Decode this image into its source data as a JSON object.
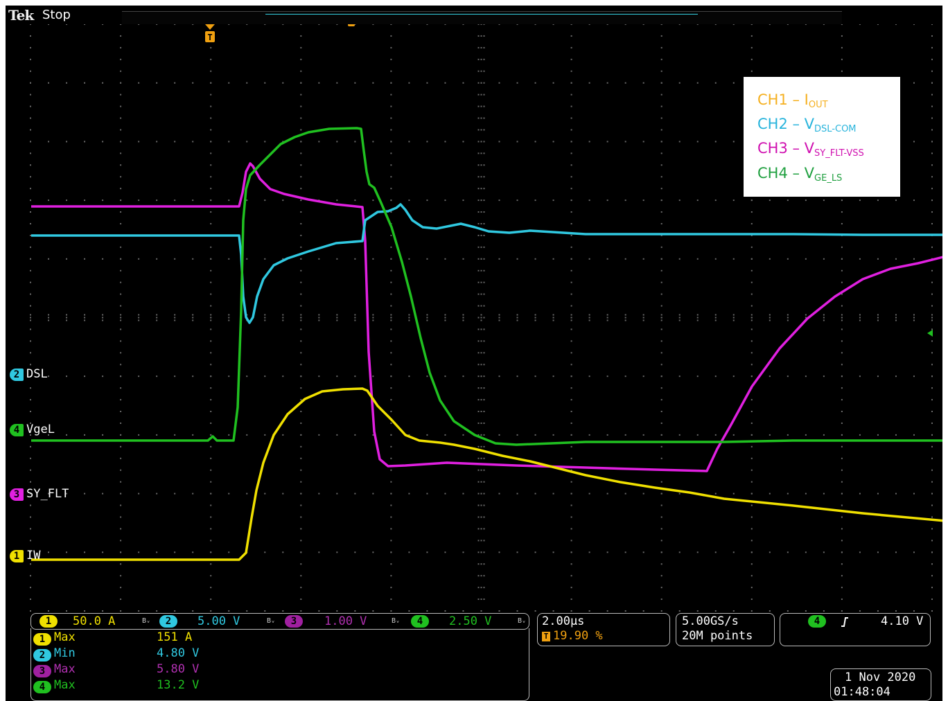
{
  "header": {
    "brand": "Tek",
    "run_state": "Stop"
  },
  "colors": {
    "ch1": "#f0e000",
    "ch2": "#30c8e0",
    "ch3": "#e020e0",
    "ch4": "#20c020",
    "trigger": "#f0a010",
    "grid": "#6a6a6a"
  },
  "channels": {
    "ch2": {
      "number": "2",
      "label": "DSL"
    },
    "ch4": {
      "number": "4",
      "label": "VgeL"
    },
    "ch3": {
      "number": "3",
      "label": "SY_FLT"
    },
    "ch1": {
      "number": "1",
      "label": "IW"
    }
  },
  "legend": {
    "ch1": {
      "prefix": "CH1 – I",
      "sub": "OUT"
    },
    "ch2": {
      "prefix": "CH2 – V",
      "sub": "DSL-COM"
    },
    "ch3": {
      "prefix": "CH3 – V",
      "sub": "SY_FLT-VSS"
    },
    "ch4": {
      "prefix": "CH4 – V",
      "sub": "GE_LS"
    }
  },
  "scales": {
    "ch1": {
      "number": "1",
      "value": "50.0 A"
    },
    "ch2": {
      "number": "2",
      "value": "5.00 V"
    },
    "ch3": {
      "number": "3",
      "value": "1.00 V"
    },
    "ch4": {
      "number": "4",
      "value": "2.50 V"
    },
    "bw_icon": "Bᵥ"
  },
  "timebase": {
    "per_div": "2.00µs",
    "trigger_position": "19.90 %"
  },
  "acquisition": {
    "sample_rate": "5.00GS/s",
    "record_length": "20M points"
  },
  "trigger": {
    "source": "4",
    "slope_icon": "rising-edge-icon",
    "level": "4.10 V"
  },
  "measurements": [
    {
      "channel": "1",
      "name": "Max",
      "value": "151 A"
    },
    {
      "channel": "2",
      "name": "Min",
      "value": "4.80 V"
    },
    {
      "channel": "3",
      "name": "Max",
      "value": "5.80 V"
    },
    {
      "channel": "4",
      "name": "Max",
      "value": "13.2 V"
    }
  ],
  "datetime": {
    "date": "1 Nov 2020",
    "time": "01:48:04"
  },
  "waveforms": {
    "ch3": [
      [
        0,
        290
      ],
      [
        300,
        290
      ],
      [
        305,
        270
      ],
      [
        310,
        240
      ],
      [
        316,
        228
      ],
      [
        320,
        232
      ],
      [
        330,
        250
      ],
      [
        345,
        265
      ],
      [
        365,
        272
      ],
      [
        400,
        280
      ],
      [
        440,
        287
      ],
      [
        478,
        291
      ],
      [
        482,
        340
      ],
      [
        487,
        500
      ],
      [
        495,
        615
      ],
      [
        503,
        655
      ],
      [
        515,
        665
      ],
      [
        540,
        664
      ],
      [
        600,
        660
      ],
      [
        700,
        664
      ],
      [
        800,
        667
      ],
      [
        900,
        670
      ],
      [
        975,
        672
      ],
      [
        990,
        640
      ],
      [
        1010,
        605
      ],
      [
        1040,
        550
      ],
      [
        1080,
        495
      ],
      [
        1120,
        452
      ],
      [
        1160,
        420
      ],
      [
        1200,
        395
      ],
      [
        1240,
        380
      ],
      [
        1280,
        372
      ],
      [
        1320,
        362
      ],
      [
        1340,
        356
      ]
    ],
    "ch2": [
      [
        0,
        332
      ],
      [
        300,
        332
      ],
      [
        303,
        360
      ],
      [
        306,
        420
      ],
      [
        310,
        450
      ],
      [
        315,
        458
      ],
      [
        320,
        450
      ],
      [
        326,
        420
      ],
      [
        335,
        395
      ],
      [
        350,
        375
      ],
      [
        370,
        365
      ],
      [
        400,
        355
      ],
      [
        440,
        343
      ],
      [
        478,
        340
      ],
      [
        482,
        310
      ],
      [
        500,
        298
      ],
      [
        515,
        297
      ],
      [
        527,
        292
      ],
      [
        533,
        287
      ],
      [
        540,
        295
      ],
      [
        550,
        310
      ],
      [
        565,
        320
      ],
      [
        585,
        322
      ],
      [
        605,
        318
      ],
      [
        620,
        315
      ],
      [
        640,
        320
      ],
      [
        660,
        326
      ],
      [
        690,
        328
      ],
      [
        720,
        325
      ],
      [
        800,
        330
      ],
      [
        900,
        330
      ],
      [
        1000,
        330
      ],
      [
        1100,
        330
      ],
      [
        1200,
        331
      ],
      [
        1340,
        331
      ]
    ],
    "ch4": [
      [
        0,
        628
      ],
      [
        255,
        628
      ],
      [
        262,
        622
      ],
      [
        268,
        628
      ],
      [
        292,
        628
      ],
      [
        298,
        580
      ],
      [
        303,
        440
      ],
      [
        306,
        310
      ],
      [
        310,
        265
      ],
      [
        316,
        245
      ],
      [
        330,
        230
      ],
      [
        345,
        215
      ],
      [
        360,
        200
      ],
      [
        380,
        190
      ],
      [
        400,
        183
      ],
      [
        430,
        178
      ],
      [
        470,
        177
      ],
      [
        476,
        178
      ],
      [
        480,
        210
      ],
      [
        484,
        240
      ],
      [
        488,
        258
      ],
      [
        495,
        263
      ],
      [
        505,
        285
      ],
      [
        520,
        320
      ],
      [
        535,
        370
      ],
      [
        548,
        420
      ],
      [
        562,
        480
      ],
      [
        575,
        530
      ],
      [
        590,
        570
      ],
      [
        610,
        600
      ],
      [
        640,
        620
      ],
      [
        670,
        632
      ],
      [
        700,
        634
      ],
      [
        800,
        630
      ],
      [
        900,
        630
      ],
      [
        1000,
        630
      ],
      [
        1100,
        628
      ],
      [
        1200,
        628
      ],
      [
        1340,
        628
      ]
    ],
    "ch1": [
      [
        0,
        800
      ],
      [
        300,
        800
      ],
      [
        310,
        790
      ],
      [
        318,
        740
      ],
      [
        325,
        700
      ],
      [
        335,
        660
      ],
      [
        350,
        620
      ],
      [
        370,
        590
      ],
      [
        395,
        568
      ],
      [
        420,
        557
      ],
      [
        450,
        554
      ],
      [
        478,
        553
      ],
      [
        485,
        556
      ],
      [
        500,
        578
      ],
      [
        520,
        598
      ],
      [
        540,
        620
      ],
      [
        560,
        628
      ],
      [
        590,
        631
      ],
      [
        610,
        634
      ],
      [
        640,
        640
      ],
      [
        680,
        650
      ],
      [
        720,
        658
      ],
      [
        760,
        668
      ],
      [
        800,
        678
      ],
      [
        850,
        688
      ],
      [
        900,
        696
      ],
      [
        950,
        703
      ],
      [
        1000,
        712
      ],
      [
        1100,
        722
      ],
      [
        1200,
        733
      ],
      [
        1340,
        746
      ]
    ]
  }
}
